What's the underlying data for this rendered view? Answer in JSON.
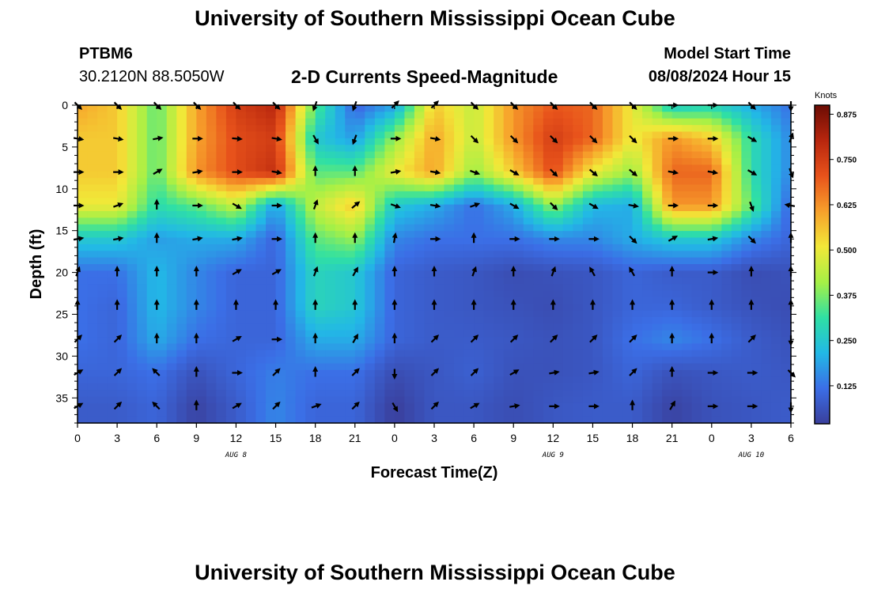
{
  "header": {
    "title": "University of Southern Mississippi Ocean Cube",
    "station_id": "PTBM6",
    "station_coords": "30.2120N  88.5050W",
    "plot_title": "2-D Currents Speed-Magnitude",
    "model_start_label": "Model Start Time",
    "model_start_value": "08/08/2024 Hour 15"
  },
  "footer": {
    "title": "University of Southern Mississippi Ocean Cube"
  },
  "chart_data": {
    "type": "heatmap",
    "title": "2-D Currents Speed-Magnitude",
    "xlabel": "Forecast Time(Z)",
    "ylabel": "Depth (ft)",
    "x_range_hours": [
      0,
      54
    ],
    "x_ticks": [
      "0",
      "3",
      "6",
      "9",
      "12",
      "15",
      "18",
      "21",
      "0",
      "3",
      "6",
      "9",
      "12",
      "15",
      "18",
      "21",
      "0",
      "3",
      "6"
    ],
    "x_date_labels": [
      {
        "label": "AUG 8",
        "hour": 12
      },
      {
        "label": "AUG 9",
        "hour": 36
      },
      {
        "label": "AUG 10",
        "hour": 51
      }
    ],
    "y_range": [
      0,
      38
    ],
    "y_ticks": [
      0,
      5,
      10,
      15,
      20,
      25,
      30,
      35
    ],
    "y_reversed": true,
    "colorbar": {
      "title": "Knots",
      "range": [
        0.02,
        0.9
      ],
      "ticks": [
        "0.125",
        "0.250",
        "0.375",
        "0.500",
        "0.625",
        "0.750",
        "0.875"
      ],
      "tick_values": [
        0.125,
        0.25,
        0.375,
        0.5,
        0.625,
        0.75,
        0.875
      ],
      "colormap": [
        "#3a3f9c",
        "#3b6ee6",
        "#22b8e6",
        "#2fe0a4",
        "#a6f046",
        "#f2e838",
        "#f7a02b",
        "#e8531b",
        "#b8260e",
        "#6b0c04"
      ]
    },
    "depths": [
      0,
      4,
      8,
      12,
      16,
      20,
      24,
      28,
      32,
      36
    ],
    "hours": [
      0,
      3,
      6,
      9,
      12,
      15,
      18,
      21,
      24,
      27,
      30,
      33,
      36,
      39,
      42,
      45,
      48,
      51,
      54
    ],
    "speed_knots": [
      [
        0.6,
        0.55,
        0.35,
        0.6,
        0.75,
        0.8,
        0.35,
        0.1,
        0.18,
        0.55,
        0.45,
        0.62,
        0.7,
        0.68,
        0.5,
        0.25,
        0.28,
        0.2,
        0.12
      ],
      [
        0.55,
        0.55,
        0.35,
        0.6,
        0.72,
        0.75,
        0.25,
        0.18,
        0.4,
        0.6,
        0.45,
        0.62,
        0.75,
        0.68,
        0.5,
        0.62,
        0.55,
        0.3,
        0.15
      ],
      [
        0.55,
        0.55,
        0.35,
        0.62,
        0.72,
        0.78,
        0.35,
        0.35,
        0.5,
        0.6,
        0.4,
        0.55,
        0.72,
        0.5,
        0.4,
        0.68,
        0.68,
        0.3,
        0.15
      ],
      [
        0.5,
        0.5,
        0.3,
        0.35,
        0.45,
        0.18,
        0.45,
        0.55,
        0.25,
        0.2,
        0.12,
        0.2,
        0.4,
        0.22,
        0.2,
        0.62,
        0.62,
        0.35,
        0.1
      ],
      [
        0.25,
        0.25,
        0.18,
        0.2,
        0.2,
        0.1,
        0.35,
        0.4,
        0.15,
        0.12,
        0.12,
        0.12,
        0.15,
        0.15,
        0.2,
        0.25,
        0.25,
        0.15,
        0.1
      ],
      [
        0.12,
        0.12,
        0.22,
        0.15,
        0.1,
        0.1,
        0.28,
        0.25,
        0.1,
        0.08,
        0.07,
        0.05,
        0.06,
        0.07,
        0.1,
        0.08,
        0.08,
        0.05,
        0.06
      ],
      [
        0.12,
        0.1,
        0.22,
        0.15,
        0.1,
        0.1,
        0.28,
        0.25,
        0.1,
        0.08,
        0.07,
        0.06,
        0.05,
        0.07,
        0.1,
        0.1,
        0.08,
        0.06,
        0.05
      ],
      [
        0.12,
        0.1,
        0.2,
        0.12,
        0.1,
        0.1,
        0.2,
        0.2,
        0.1,
        0.08,
        0.08,
        0.07,
        0.06,
        0.07,
        0.12,
        0.15,
        0.12,
        0.08,
        0.06
      ],
      [
        0.1,
        0.1,
        0.12,
        0.06,
        0.1,
        0.14,
        0.12,
        0.12,
        0.05,
        0.07,
        0.09,
        0.06,
        0.06,
        0.07,
        0.1,
        0.06,
        0.07,
        0.08,
        0.07
      ],
      [
        0.08,
        0.08,
        0.1,
        0.03,
        0.08,
        0.15,
        0.1,
        0.1,
        0.02,
        0.07,
        0.07,
        0.05,
        0.07,
        0.08,
        0.08,
        0.03,
        0.06,
        0.07,
        0.08
      ]
    ],
    "direction_deg": [
      [
        135,
        135,
        135,
        135,
        135,
        135,
        200,
        200,
        45,
        45,
        135,
        135,
        135,
        135,
        135,
        90,
        90,
        135,
        180
      ],
      [
        100,
        100,
        80,
        90,
        95,
        100,
        150,
        200,
        90,
        100,
        135,
        135,
        135,
        135,
        135,
        90,
        90,
        120,
        20
      ],
      [
        90,
        90,
        60,
        80,
        90,
        100,
        0,
        0,
        80,
        100,
        110,
        120,
        135,
        130,
        130,
        100,
        100,
        120,
        160
      ],
      [
        90,
        70,
        0,
        90,
        120,
        90,
        20,
        50,
        110,
        100,
        70,
        120,
        135,
        120,
        100,
        90,
        90,
        160,
        280
      ],
      [
        80,
        80,
        0,
        80,
        80,
        90,
        0,
        0,
        10,
        90,
        0,
        90,
        90,
        90,
        135,
        60,
        80,
        135,
        0
      ],
      [
        20,
        0,
        0,
        0,
        60,
        60,
        20,
        30,
        0,
        0,
        20,
        0,
        20,
        330,
        330,
        0,
        90,
        0,
        0
      ],
      [
        0,
        0,
        0,
        0,
        0,
        0,
        0,
        0,
        0,
        0,
        0,
        0,
        0,
        0,
        0,
        0,
        0,
        0,
        0
      ],
      [
        45,
        45,
        0,
        0,
        60,
        90,
        0,
        30,
        0,
        45,
        45,
        45,
        45,
        45,
        45,
        0,
        0,
        45,
        180
      ],
      [
        60,
        45,
        315,
        0,
        90,
        45,
        0,
        45,
        180,
        45,
        45,
        60,
        80,
        80,
        45,
        0,
        90,
        90,
        135
      ],
      [
        60,
        45,
        315,
        0,
        60,
        45,
        70,
        45,
        150,
        45,
        60,
        80,
        90,
        90,
        0,
        30,
        90,
        90,
        180
      ]
    ]
  }
}
